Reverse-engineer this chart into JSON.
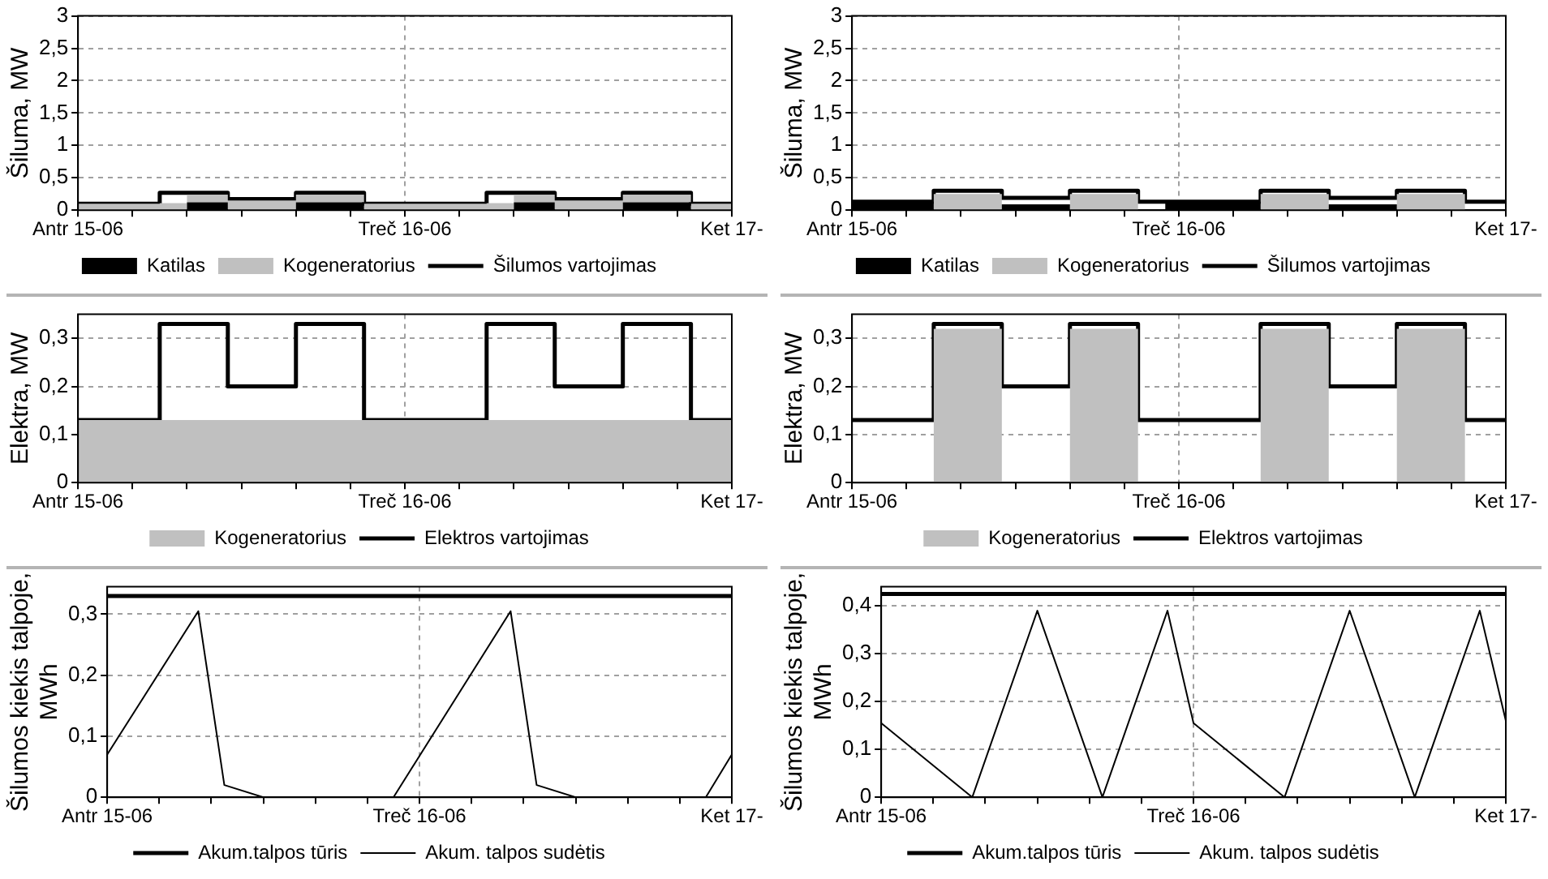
{
  "chart_data": [
    {
      "type": "step",
      "ylabel": "Šiluma, MW",
      "stacked": true,
      "grid": true,
      "legend": "bottom",
      "categories": [
        "Antr 15-06",
        null,
        null,
        null,
        null,
        null,
        null,
        null,
        null,
        null,
        null,
        null,
        null,
        null,
        null,
        null,
        null,
        null,
        null,
        null,
        null,
        null,
        null,
        null,
        "Treč 16-06",
        null,
        null,
        null,
        null,
        null,
        null,
        null,
        null,
        null,
        null,
        null,
        null,
        null,
        null,
        null,
        null,
        null,
        null,
        null,
        null,
        null,
        null,
        null,
        "Ket 17-"
      ],
      "ylim": [
        0,
        3
      ],
      "yticks": [
        0,
        {
          "value": 0.5,
          "label": "0,5"
        },
        1,
        {
          "value": 1.5,
          "label": "1,5"
        },
        2,
        {
          "value": 2.5,
          "label": "2,5"
        },
        3
      ],
      "series": [
        {
          "name": "Katilas",
          "type": "area",
          "color": "#000000",
          "values": [
            0,
            0,
            0,
            0,
            0,
            0,
            0,
            0,
            0,
            0.12,
            0.12,
            0.12,
            0,
            0,
            0,
            0,
            0,
            0.12,
            0.12,
            0.12,
            0.12,
            0.12,
            0,
            0,
            0,
            0,
            0,
            0,
            0,
            0,
            0,
            0,
            0,
            0.12,
            0.12,
            0.12,
            0,
            0,
            0,
            0,
            0,
            0.12,
            0.12,
            0.12,
            0.12,
            0.12,
            0,
            0,
            0
          ]
        },
        {
          "name": "Kogeneratorius",
          "type": "area",
          "color": "#c0c0c0",
          "values": [
            0.1,
            0.1,
            0.1,
            0.1,
            0.1,
            0.1,
            0.1,
            0.11,
            0.11,
            0.12,
            0.12,
            0.12,
            0.15,
            0.15,
            0.15,
            0.15,
            0.15,
            0.12,
            0.12,
            0.12,
            0.12,
            0.12,
            0.1,
            0.1,
            0.1,
            0.1,
            0.1,
            0.1,
            0.1,
            0.1,
            0.1,
            0.11,
            0.11,
            0.12,
            0.12,
            0.12,
            0.15,
            0.15,
            0.15,
            0.15,
            0.15,
            0.12,
            0.12,
            0.12,
            0.12,
            0.12,
            0.1,
            0.1,
            0.1
          ]
        },
        {
          "name": "Šilumos vartojimas",
          "color": "#000000",
          "values": [
            0.1,
            0.1,
            0.1,
            0.1,
            0.1,
            0.1,
            0.1,
            0.27,
            0.27,
            0.27,
            0.27,
            0.27,
            0.17,
            0.17,
            0.17,
            0.17,
            0.17,
            0.27,
            0.27,
            0.27,
            0.27,
            0.27,
            0.1,
            0.1,
            0.1,
            0.1,
            0.1,
            0.1,
            0.1,
            0.1,
            0.1,
            0.27,
            0.27,
            0.27,
            0.27,
            0.27,
            0.17,
            0.17,
            0.17,
            0.17,
            0.17,
            0.27,
            0.27,
            0.27,
            0.27,
            0.27,
            0.1,
            0.1,
            0.1
          ]
        }
      ]
    },
    {
      "type": "step",
      "ylabel": "Šiluma, MW",
      "stacked": true,
      "grid": true,
      "legend": "bottom",
      "categories": [
        "Antr 15-06",
        null,
        null,
        null,
        null,
        null,
        null,
        null,
        null,
        null,
        null,
        null,
        null,
        null,
        null,
        null,
        null,
        null,
        null,
        null,
        null,
        null,
        null,
        null,
        "Treč 16-06",
        null,
        null,
        null,
        null,
        null,
        null,
        null,
        null,
        null,
        null,
        null,
        null,
        null,
        null,
        null,
        null,
        null,
        null,
        null,
        null,
        null,
        null,
        null,
        "Ket 17-"
      ],
      "ylim": [
        0,
        3
      ],
      "yticks": [
        0,
        {
          "value": 0.5,
          "label": "0,5"
        },
        1,
        {
          "value": 1.5,
          "label": "1,5"
        },
        2,
        {
          "value": 2.5,
          "label": "2,5"
        },
        3
      ],
      "series": [
        {
          "name": "Katilas",
          "type": "area",
          "color": "#000000",
          "values": [
            0.13,
            0.13,
            0.13,
            0.13,
            0.13,
            0.13,
            0.13,
            0,
            0,
            0,
            0,
            0,
            0.09,
            0.09,
            0.09,
            0.09,
            0.09,
            0,
            0,
            0,
            0,
            0,
            0,
            0,
            0.13,
            0.13,
            0.13,
            0.13,
            0.13,
            0.13,
            0.13,
            0,
            0,
            0,
            0,
            0,
            0.09,
            0.09,
            0.09,
            0.09,
            0.09,
            0,
            0,
            0,
            0,
            0,
            0,
            0,
            0
          ]
        },
        {
          "name": "Kogeneratorius",
          "type": "area",
          "color": "#c0c0c0",
          "values": [
            0,
            0,
            0,
            0,
            0,
            0,
            0,
            0.25,
            0.25,
            0.25,
            0.25,
            0.25,
            0,
            0,
            0,
            0,
            0,
            0.25,
            0.25,
            0.25,
            0.25,
            0.25,
            0,
            0,
            0,
            0,
            0,
            0,
            0,
            0,
            0,
            0.25,
            0.25,
            0.25,
            0.25,
            0.25,
            0,
            0,
            0,
            0,
            0,
            0.25,
            0.25,
            0.25,
            0.25,
            0.25,
            0,
            0,
            0
          ]
        },
        {
          "name": "Šilumos vartojimas",
          "color": "#000000",
          "values": [
            0.13,
            0.13,
            0.13,
            0.13,
            0.13,
            0.13,
            0.13,
            0.3,
            0.3,
            0.3,
            0.3,
            0.3,
            0.19,
            0.19,
            0.19,
            0.19,
            0.19,
            0.3,
            0.3,
            0.3,
            0.3,
            0.3,
            0.13,
            0.13,
            0.13,
            0.13,
            0.13,
            0.13,
            0.13,
            0.13,
            0.13,
            0.3,
            0.3,
            0.3,
            0.3,
            0.3,
            0.19,
            0.19,
            0.19,
            0.19,
            0.19,
            0.3,
            0.3,
            0.3,
            0.3,
            0.3,
            0.13,
            0.13,
            0.13
          ]
        }
      ]
    },
    {
      "type": "step",
      "ylabel": "Elektra, MW",
      "stacked": true,
      "grid": true,
      "legend": "bottom",
      "categories": [
        "Antr 15-06",
        null,
        null,
        null,
        null,
        null,
        null,
        null,
        null,
        null,
        null,
        null,
        null,
        null,
        null,
        null,
        null,
        null,
        null,
        null,
        null,
        null,
        null,
        null,
        "Treč 16-06",
        null,
        null,
        null,
        null,
        null,
        null,
        null,
        null,
        null,
        null,
        null,
        null,
        null,
        null,
        null,
        null,
        null,
        null,
        null,
        null,
        null,
        null,
        null,
        "Ket 17-"
      ],
      "ylim": [
        0,
        0.35
      ],
      "yticks": [
        0,
        {
          "value": 0.1,
          "label": "0,1"
        },
        {
          "value": 0.2,
          "label": "0,2"
        },
        {
          "value": 0.3,
          "label": "0,3"
        }
      ],
      "series": [
        {
          "name": "Kogeneratorius",
          "type": "area",
          "color": "#c0c0c0",
          "values": [
            0.13,
            0.13,
            0.13,
            0.13,
            0.13,
            0.13,
            0.13,
            0.13,
            0.13,
            0.13,
            0.13,
            0.13,
            0.13,
            0.13,
            0.13,
            0.13,
            0.13,
            0.13,
            0.13,
            0.13,
            0.13,
            0.13,
            0.13,
            0.13,
            0.13,
            0.13,
            0.13,
            0.13,
            0.13,
            0.13,
            0.13,
            0.13,
            0.13,
            0.13,
            0.13,
            0.13,
            0.13,
            0.13,
            0.13,
            0.13,
            0.13,
            0.13,
            0.13,
            0.13,
            0.13,
            0.13,
            0.13,
            0.13,
            0.13
          ]
        },
        {
          "name": "Elektros vartojimas",
          "color": "#000000",
          "values": [
            0.13,
            0.13,
            0.13,
            0.13,
            0.13,
            0.13,
            0.13,
            0.33,
            0.33,
            0.33,
            0.33,
            0.33,
            0.2,
            0.2,
            0.2,
            0.2,
            0.2,
            0.33,
            0.33,
            0.33,
            0.33,
            0.33,
            0.13,
            0.13,
            0.13,
            0.13,
            0.13,
            0.13,
            0.13,
            0.13,
            0.13,
            0.33,
            0.33,
            0.33,
            0.33,
            0.33,
            0.2,
            0.2,
            0.2,
            0.2,
            0.2,
            0.33,
            0.33,
            0.33,
            0.33,
            0.33,
            0.13,
            0.13,
            0.13
          ]
        }
      ]
    },
    {
      "type": "step",
      "ylabel": "Elektra, MW",
      "stacked": true,
      "grid": true,
      "legend": "bottom",
      "categories": [
        "Antr 15-06",
        null,
        null,
        null,
        null,
        null,
        null,
        null,
        null,
        null,
        null,
        null,
        null,
        null,
        null,
        null,
        null,
        null,
        null,
        null,
        null,
        null,
        null,
        null,
        "Treč 16-06",
        null,
        null,
        null,
        null,
        null,
        null,
        null,
        null,
        null,
        null,
        null,
        null,
        null,
        null,
        null,
        null,
        null,
        null,
        null,
        null,
        null,
        null,
        null,
        "Ket 17-"
      ],
      "ylim": [
        0,
        0.35
      ],
      "yticks": [
        0,
        {
          "value": 0.1,
          "label": "0,1"
        },
        {
          "value": 0.2,
          "label": "0,2"
        },
        {
          "value": 0.3,
          "label": "0,3"
        }
      ],
      "series": [
        {
          "name": "Kogeneratorius",
          "type": "area",
          "color": "#c0c0c0",
          "values": [
            0,
            0,
            0,
            0,
            0,
            0,
            0,
            0.32,
            0.32,
            0.32,
            0.32,
            0.32,
            0,
            0,
            0,
            0,
            0,
            0.32,
            0.32,
            0.32,
            0.32,
            0.32,
            0,
            0,
            0,
            0,
            0,
            0,
            0,
            0,
            0,
            0.32,
            0.32,
            0.32,
            0.32,
            0.32,
            0,
            0,
            0,
            0,
            0,
            0.32,
            0.32,
            0.32,
            0.32,
            0.32,
            0,
            0,
            0
          ]
        },
        {
          "name": "Elektros vartojimas",
          "color": "#000000",
          "values": [
            0.13,
            0.13,
            0.13,
            0.13,
            0.13,
            0.13,
            0.13,
            0.33,
            0.33,
            0.33,
            0.33,
            0.33,
            0.2,
            0.2,
            0.2,
            0.2,
            0.2,
            0.33,
            0.33,
            0.33,
            0.33,
            0.33,
            0.13,
            0.13,
            0.13,
            0.13,
            0.13,
            0.13,
            0.13,
            0.13,
            0.13,
            0.33,
            0.33,
            0.33,
            0.33,
            0.33,
            0.2,
            0.2,
            0.2,
            0.2,
            0.2,
            0.33,
            0.33,
            0.33,
            0.33,
            0.33,
            0.13,
            0.13,
            0.13
          ]
        }
      ]
    },
    {
      "type": "line",
      "ylabel": "Šilumos kiekis talpoje, MWh",
      "grid": true,
      "legend": "bottom",
      "categories": [
        "Antr 15-06",
        null,
        null,
        null,
        null,
        null,
        null,
        null,
        null,
        null,
        null,
        null,
        null,
        null,
        null,
        null,
        null,
        null,
        null,
        null,
        null,
        null,
        null,
        null,
        "Treč 16-06",
        null,
        null,
        null,
        null,
        null,
        null,
        null,
        null,
        null,
        null,
        null,
        null,
        null,
        null,
        null,
        null,
        null,
        null,
        null,
        null,
        null,
        null,
        null,
        "Ket 17-"
      ],
      "ylim": [
        0,
        0.345
      ],
      "yticks": [
        0,
        {
          "value": 0.1,
          "label": "0,1"
        },
        {
          "value": 0.2,
          "label": "0,2"
        },
        {
          "value": 0.3,
          "label": "0,3"
        }
      ],
      "series": [
        {
          "name": "Akum.talpos tūris",
          "color": "#000000",
          "values": [
            0.33,
            null,
            null,
            null,
            null,
            null,
            null,
            null,
            null,
            null,
            null,
            null,
            null,
            null,
            null,
            null,
            null,
            null,
            null,
            null,
            null,
            null,
            null,
            null,
            null,
            null,
            null,
            null,
            null,
            null,
            null,
            null,
            null,
            null,
            null,
            null,
            null,
            null,
            null,
            null,
            null,
            null,
            null,
            null,
            null,
            null,
            null,
            null,
            0.33
          ]
        },
        {
          "name": "Akum. talpos sudėtis",
          "color": "#000000",
          "values": [
            0.07,
            null,
            null,
            null,
            null,
            null,
            null,
            0.305,
            null,
            0.02,
            null,
            null,
            0,
            null,
            null,
            null,
            null,
            null,
            null,
            null,
            null,
            null,
            0,
            null,
            null,
            null,
            null,
            null,
            null,
            null,
            null,
            0.305,
            null,
            0.02,
            null,
            null,
            0,
            null,
            null,
            null,
            null,
            null,
            null,
            null,
            null,
            null,
            0,
            null,
            0.07
          ]
        }
      ]
    },
    {
      "type": "line",
      "ylabel": "Šilumos kiekis talpoje, MWh",
      "grid": true,
      "legend": "bottom",
      "categories": [
        "Antr 15-06",
        null,
        null,
        null,
        null,
        null,
        null,
        null,
        null,
        null,
        null,
        null,
        null,
        null,
        null,
        null,
        null,
        null,
        null,
        null,
        null,
        null,
        null,
        null,
        "Treč 16-06",
        null,
        null,
        null,
        null,
        null,
        null,
        null,
        null,
        null,
        null,
        null,
        null,
        null,
        null,
        null,
        null,
        null,
        null,
        null,
        null,
        null,
        null,
        null,
        "Ket 17-"
      ],
      "ylim": [
        0,
        0.44
      ],
      "yticks": [
        0,
        {
          "value": 0.1,
          "label": "0,1"
        },
        {
          "value": 0.2,
          "label": "0,2"
        },
        {
          "value": 0.3,
          "label": "0,3"
        },
        {
          "value": 0.4,
          "label": "0,4"
        }
      ],
      "series": [
        {
          "name": "Akum.talpos tūris",
          "color": "#000000",
          "values": [
            0.425,
            null,
            null,
            null,
            null,
            null,
            null,
            null,
            null,
            null,
            null,
            null,
            null,
            null,
            null,
            null,
            null,
            null,
            null,
            null,
            null,
            null,
            null,
            null,
            null,
            null,
            null,
            null,
            null,
            null,
            null,
            null,
            null,
            null,
            null,
            null,
            null,
            null,
            null,
            null,
            null,
            null,
            null,
            null,
            null,
            null,
            null,
            null,
            0.425
          ]
        },
        {
          "name": "Akum. talpos sudėtis",
          "color": "#000000",
          "values": [
            0.155,
            null,
            null,
            null,
            null,
            null,
            null,
            0,
            null,
            null,
            null,
            null,
            0.39,
            null,
            null,
            null,
            null,
            0,
            null,
            null,
            null,
            null,
            0.39,
            null,
            0.155,
            null,
            null,
            null,
            null,
            null,
            null,
            0,
            null,
            null,
            null,
            null,
            0.39,
            null,
            null,
            null,
            null,
            0,
            null,
            null,
            null,
            null,
            0.39,
            null,
            0.16
          ]
        }
      ]
    }
  ]
}
